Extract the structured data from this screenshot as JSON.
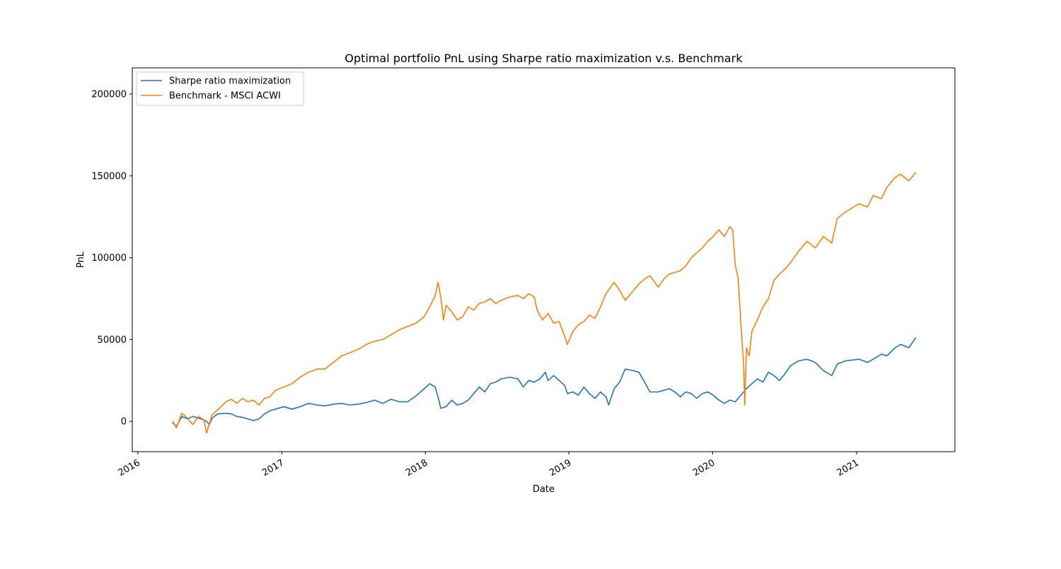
{
  "chart_data": {
    "type": "line",
    "title": "Optimal portfolio PnL using Sharpe ratio maximization v.s. Benchmark",
    "xlabel": "Date",
    "ylabel": "PnL",
    "x_type": "date",
    "xlim": [
      "2015-12-18",
      "2021-09-08"
    ],
    "ylim": [
      -18500,
      216000
    ],
    "x_ticks": [
      "2016",
      "2017",
      "2018",
      "2019",
      "2020",
      "2021"
    ],
    "x_tick_dates": [
      "2016-01-01",
      "2017-01-01",
      "2018-01-01",
      "2019-01-01",
      "2020-01-01",
      "2021-01-01"
    ],
    "y_ticks": [
      0,
      50000,
      100000,
      150000,
      200000
    ],
    "grid": false,
    "legend_position": "upper left",
    "series": [
      {
        "name": "Sharpe ratio maximization",
        "color": "#1f77b4",
        "points": [
          [
            "2016-03-30",
            -1000
          ],
          [
            "2016-04-08",
            -3000
          ],
          [
            "2016-04-15",
            0
          ],
          [
            "2016-04-22",
            3000
          ],
          [
            "2016-05-06",
            1500
          ],
          [
            "2016-05-20",
            3000
          ],
          [
            "2016-06-10",
            1500
          ],
          [
            "2016-06-24",
            0
          ],
          [
            "2016-07-01",
            -2000
          ],
          [
            "2016-07-08",
            2000
          ],
          [
            "2016-07-22",
            4500
          ],
          [
            "2016-08-12",
            5000
          ],
          [
            "2016-08-26",
            4500
          ],
          [
            "2016-09-09",
            3000
          ],
          [
            "2016-09-23",
            2500
          ],
          [
            "2016-10-07",
            1500
          ],
          [
            "2016-10-21",
            500
          ],
          [
            "2016-11-04",
            1500
          ],
          [
            "2016-11-18",
            4500
          ],
          [
            "2016-12-02",
            6500
          ],
          [
            "2016-12-16",
            7500
          ],
          [
            "2017-01-06",
            9000
          ],
          [
            "2017-01-27",
            7500
          ],
          [
            "2017-02-17",
            9000
          ],
          [
            "2017-03-10",
            11000
          ],
          [
            "2017-03-31",
            10000
          ],
          [
            "2017-04-21",
            9500
          ],
          [
            "2017-05-12",
            10500
          ],
          [
            "2017-06-02",
            11000
          ],
          [
            "2017-06-23",
            10000
          ],
          [
            "2017-07-14",
            10500
          ],
          [
            "2017-08-04",
            11500
          ],
          [
            "2017-08-25",
            13000
          ],
          [
            "2017-09-15",
            11000
          ],
          [
            "2017-10-06",
            13500
          ],
          [
            "2017-10-27",
            12000
          ],
          [
            "2017-11-17",
            12000
          ],
          [
            "2017-12-08",
            15500
          ],
          [
            "2017-12-29",
            20000
          ],
          [
            "2018-01-12",
            23000
          ],
          [
            "2018-01-26",
            21000
          ],
          [
            "2018-02-02",
            15000
          ],
          [
            "2018-02-09",
            8000
          ],
          [
            "2018-02-23",
            9000
          ],
          [
            "2018-03-09",
            13000
          ],
          [
            "2018-03-23",
            10000
          ],
          [
            "2018-04-06",
            11000
          ],
          [
            "2018-04-20",
            13000
          ],
          [
            "2018-05-04",
            17000
          ],
          [
            "2018-05-18",
            21000
          ],
          [
            "2018-06-01",
            18000
          ],
          [
            "2018-06-15",
            23000
          ],
          [
            "2018-06-29",
            24000
          ],
          [
            "2018-07-13",
            26000
          ],
          [
            "2018-08-03",
            27000
          ],
          [
            "2018-08-24",
            26000
          ],
          [
            "2018-09-07",
            21000
          ],
          [
            "2018-09-21",
            25000
          ],
          [
            "2018-10-05",
            24000
          ],
          [
            "2018-10-19",
            26000
          ],
          [
            "2018-11-02",
            30000
          ],
          [
            "2018-11-09",
            25000
          ],
          [
            "2018-11-23",
            28000
          ],
          [
            "2018-12-07",
            25000
          ],
          [
            "2018-12-21",
            22000
          ],
          [
            "2018-12-28",
            17000
          ],
          [
            "2019-01-11",
            18000
          ],
          [
            "2019-01-25",
            16000
          ],
          [
            "2019-02-08",
            21000
          ],
          [
            "2019-02-22",
            17000
          ],
          [
            "2019-03-08",
            14000
          ],
          [
            "2019-03-22",
            18000
          ],
          [
            "2019-04-05",
            15000
          ],
          [
            "2019-04-12",
            10000
          ],
          [
            "2019-04-26",
            20000
          ],
          [
            "2019-05-10",
            24000
          ],
          [
            "2019-05-24",
            32000
          ],
          [
            "2019-06-14",
            31000
          ],
          [
            "2019-06-28",
            30000
          ],
          [
            "2019-07-12",
            24000
          ],
          [
            "2019-07-26",
            18000
          ],
          [
            "2019-08-16",
            18000
          ],
          [
            "2019-08-30",
            19000
          ],
          [
            "2019-09-13",
            20000
          ],
          [
            "2019-09-27",
            18000
          ],
          [
            "2019-10-11",
            15000
          ],
          [
            "2019-10-25",
            18000
          ],
          [
            "2019-11-08",
            17000
          ],
          [
            "2019-11-22",
            14000
          ],
          [
            "2019-12-06",
            17000
          ],
          [
            "2019-12-20",
            18000
          ],
          [
            "2020-01-03",
            16000
          ],
          [
            "2020-01-17",
            13000
          ],
          [
            "2020-01-31",
            11000
          ],
          [
            "2020-02-14",
            13000
          ],
          [
            "2020-02-28",
            12000
          ],
          [
            "2020-03-13",
            16000
          ],
          [
            "2020-03-27",
            20000
          ],
          [
            "2020-04-10",
            23000
          ],
          [
            "2020-04-24",
            26000
          ],
          [
            "2020-05-08",
            24000
          ],
          [
            "2020-05-22",
            30000
          ],
          [
            "2020-06-05",
            28000
          ],
          [
            "2020-06-19",
            25000
          ],
          [
            "2020-07-03",
            29000
          ],
          [
            "2020-07-17",
            34000
          ],
          [
            "2020-08-07",
            37000
          ],
          [
            "2020-08-28",
            38000
          ],
          [
            "2020-09-18",
            36000
          ],
          [
            "2020-10-09",
            31000
          ],
          [
            "2020-10-30",
            28000
          ],
          [
            "2020-11-13",
            35000
          ],
          [
            "2020-12-04",
            37000
          ],
          [
            "2021-01-08",
            38000
          ],
          [
            "2021-01-29",
            36000
          ],
          [
            "2021-02-12",
            38000
          ],
          [
            "2021-03-05",
            41000
          ],
          [
            "2021-03-19",
            40000
          ],
          [
            "2021-04-09",
            45000
          ],
          [
            "2021-04-23",
            47000
          ],
          [
            "2021-05-14",
            45000
          ],
          [
            "2021-05-31",
            51000
          ]
        ]
      },
      {
        "name": "Benchmark - MSCI ACWI",
        "color": "#ff7f0e",
        "points": [
          [
            "2016-03-30",
            0
          ],
          [
            "2016-04-08",
            -4000
          ],
          [
            "2016-04-22",
            5000
          ],
          [
            "2016-05-06",
            2000
          ],
          [
            "2016-05-20",
            -2000
          ],
          [
            "2016-06-03",
            3000
          ],
          [
            "2016-06-17",
            1000
          ],
          [
            "2016-06-24",
            -7000
          ],
          [
            "2016-07-08",
            4000
          ],
          [
            "2016-07-22",
            7000
          ],
          [
            "2016-08-12",
            12000
          ],
          [
            "2016-08-26",
            13500
          ],
          [
            "2016-09-09",
            11000
          ],
          [
            "2016-09-23",
            14000
          ],
          [
            "2016-10-07",
            12000
          ],
          [
            "2016-10-21",
            13000
          ],
          [
            "2016-11-04",
            10000
          ],
          [
            "2016-11-18",
            14000
          ],
          [
            "2016-12-02",
            15000
          ],
          [
            "2016-12-16",
            19000
          ],
          [
            "2017-01-06",
            21000
          ],
          [
            "2017-01-27",
            23000
          ],
          [
            "2017-02-17",
            27000
          ],
          [
            "2017-03-10",
            30000
          ],
          [
            "2017-03-31",
            32000
          ],
          [
            "2017-04-21",
            32000
          ],
          [
            "2017-05-12",
            36000
          ],
          [
            "2017-06-02",
            40000
          ],
          [
            "2017-06-23",
            42000
          ],
          [
            "2017-07-14",
            44000
          ],
          [
            "2017-08-04",
            47000
          ],
          [
            "2017-08-25",
            49000
          ],
          [
            "2017-09-15",
            50000
          ],
          [
            "2017-10-06",
            53000
          ],
          [
            "2017-10-27",
            56000
          ],
          [
            "2017-11-17",
            58000
          ],
          [
            "2017-12-08",
            60000
          ],
          [
            "2017-12-29",
            64000
          ],
          [
            "2018-01-12",
            70000
          ],
          [
            "2018-01-26",
            77000
          ],
          [
            "2018-02-02",
            85000
          ],
          [
            "2018-02-09",
            76000
          ],
          [
            "2018-02-16",
            62000
          ],
          [
            "2018-02-23",
            71000
          ],
          [
            "2018-03-09",
            67000
          ],
          [
            "2018-03-23",
            62000
          ],
          [
            "2018-04-06",
            64000
          ],
          [
            "2018-04-20",
            70000
          ],
          [
            "2018-05-04",
            68000
          ],
          [
            "2018-05-18",
            72000
          ],
          [
            "2018-06-01",
            73000
          ],
          [
            "2018-06-15",
            75000
          ],
          [
            "2018-06-29",
            72000
          ],
          [
            "2018-07-13",
            74000
          ],
          [
            "2018-08-03",
            76000
          ],
          [
            "2018-08-24",
            77000
          ],
          [
            "2018-09-07",
            75000
          ],
          [
            "2018-09-21",
            78000
          ],
          [
            "2018-10-05",
            76000
          ],
          [
            "2018-10-12",
            68000
          ],
          [
            "2018-10-26",
            62000
          ],
          [
            "2018-11-09",
            66000
          ],
          [
            "2018-11-23",
            60000
          ],
          [
            "2018-12-07",
            61000
          ],
          [
            "2018-12-21",
            52000
          ],
          [
            "2018-12-28",
            47000
          ],
          [
            "2019-01-11",
            55000
          ],
          [
            "2019-01-25",
            59000
          ],
          [
            "2019-02-08",
            61000
          ],
          [
            "2019-02-22",
            65000
          ],
          [
            "2019-03-08",
            63000
          ],
          [
            "2019-03-22",
            70000
          ],
          [
            "2019-04-05",
            78000
          ],
          [
            "2019-04-26",
            85000
          ],
          [
            "2019-05-10",
            80000
          ],
          [
            "2019-05-24",
            74000
          ],
          [
            "2019-06-14",
            80000
          ],
          [
            "2019-06-28",
            84000
          ],
          [
            "2019-07-12",
            87000
          ],
          [
            "2019-07-26",
            89000
          ],
          [
            "2019-08-16",
            82000
          ],
          [
            "2019-08-30",
            87000
          ],
          [
            "2019-09-13",
            90000
          ],
          [
            "2019-09-27",
            91000
          ],
          [
            "2019-10-11",
            92000
          ],
          [
            "2019-10-25",
            95000
          ],
          [
            "2019-11-08",
            100000
          ],
          [
            "2019-11-22",
            103000
          ],
          [
            "2019-12-06",
            106000
          ],
          [
            "2019-12-20",
            110000
          ],
          [
            "2020-01-03",
            113000
          ],
          [
            "2020-01-17",
            117000
          ],
          [
            "2020-01-31",
            113000
          ],
          [
            "2020-02-14",
            119000
          ],
          [
            "2020-02-21",
            117000
          ],
          [
            "2020-02-28",
            95000
          ],
          [
            "2020-03-06",
            88000
          ],
          [
            "2020-03-13",
            60000
          ],
          [
            "2020-03-20",
            35000
          ],
          [
            "2020-03-23",
            10000
          ],
          [
            "2020-03-27",
            45000
          ],
          [
            "2020-04-03",
            40000
          ],
          [
            "2020-04-10",
            55000
          ],
          [
            "2020-04-24",
            62000
          ],
          [
            "2020-05-08",
            70000
          ],
          [
            "2020-05-22",
            75000
          ],
          [
            "2020-06-05",
            86000
          ],
          [
            "2020-06-19",
            90000
          ],
          [
            "2020-07-03",
            93000
          ],
          [
            "2020-07-17",
            97000
          ],
          [
            "2020-08-07",
            104000
          ],
          [
            "2020-08-28",
            110000
          ],
          [
            "2020-09-18",
            106000
          ],
          [
            "2020-10-09",
            113000
          ],
          [
            "2020-10-30",
            109000
          ],
          [
            "2020-11-13",
            124000
          ],
          [
            "2020-12-04",
            128000
          ],
          [
            "2021-01-08",
            133000
          ],
          [
            "2021-01-29",
            131000
          ],
          [
            "2021-02-12",
            138000
          ],
          [
            "2021-03-05",
            136000
          ],
          [
            "2021-03-19",
            143000
          ],
          [
            "2021-04-09",
            149000
          ],
          [
            "2021-04-23",
            151000
          ],
          [
            "2021-05-14",
            147000
          ],
          [
            "2021-05-31",
            152000
          ]
        ]
      }
    ]
  }
}
